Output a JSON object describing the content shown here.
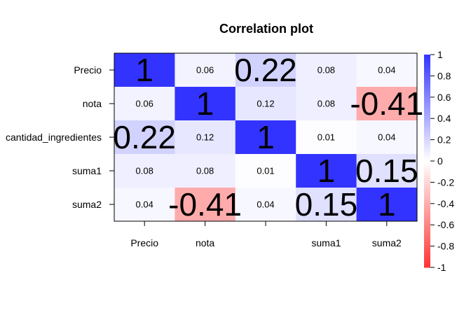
{
  "chart_data": {
    "type": "heatmap",
    "title": "Correlation plot",
    "row_labels": [
      "Precio",
      "nota",
      "cantidad_ingredientes",
      "suma1",
      "suma2"
    ],
    "col_labels": [
      "Precio",
      "nota",
      "",
      "suma1",
      "suma2"
    ],
    "values": [
      [
        1,
        0.06,
        0.22,
        0.08,
        0.04
      ],
      [
        0.06,
        1,
        0.12,
        0.08,
        -0.41
      ],
      [
        0.22,
        0.12,
        1,
        0.01,
        0.04
      ],
      [
        0.08,
        0.08,
        0.01,
        1,
        0.15
      ],
      [
        0.04,
        -0.41,
        0.04,
        0.15,
        1
      ]
    ],
    "cell_labels": [
      [
        "1",
        "0.06",
        "0.22",
        "0.08",
        "0.04"
      ],
      [
        "0.06",
        "1",
        "0.12",
        "0.08",
        "-0.41"
      ],
      [
        "0.22",
        "0.12",
        "1",
        "0.01",
        "0.04"
      ],
      [
        "0.08",
        "0.08",
        "0.01",
        "1",
        "0.15"
      ],
      [
        "0.04",
        "-0.41",
        "0.04",
        "0.15",
        "1"
      ]
    ],
    "colorbar": {
      "range": [
        -1,
        1
      ],
      "ticks": [
        "1",
        "0.8",
        "0.6",
        "0.4",
        "0.2",
        "0",
        "-0.2",
        "-0.4",
        "-0.6",
        "-0.8",
        "-1"
      ],
      "positive_color": "#3333ff",
      "negative_color": "#ff3333",
      "zero_color": "#ffffff"
    },
    "grid": false,
    "legend": "right"
  }
}
